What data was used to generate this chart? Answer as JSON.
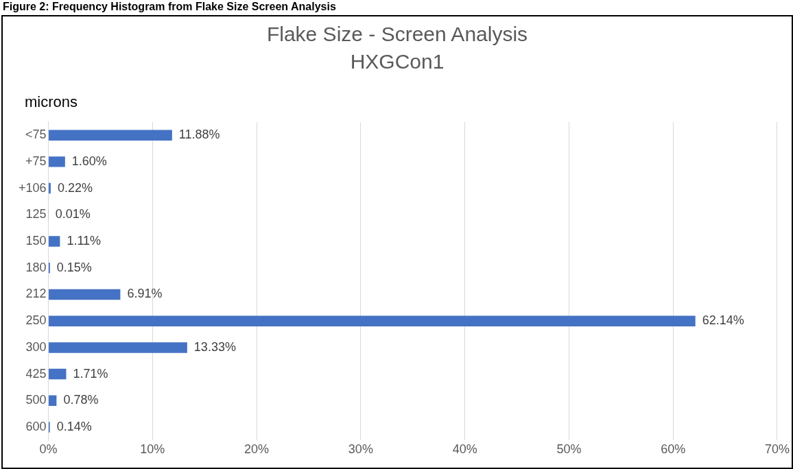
{
  "chart_data": {
    "type": "bar",
    "orientation": "horizontal",
    "title": "Flake Size - Screen Analysis",
    "subtitle": "HXGCon1",
    "ylabel": "microns",
    "annotations": [
      "Figure 2: Frequency Histogram from Flake Size Screen Analysis"
    ],
    "categories": [
      "<75",
      "+75",
      "+106",
      "125",
      "150",
      "180",
      "212",
      "250",
      "300",
      "425",
      "500",
      "600"
    ],
    "values": [
      11.88,
      1.6,
      0.22,
      0.01,
      1.11,
      0.15,
      6.91,
      62.14,
      13.33,
      1.71,
      0.78,
      0.14
    ],
    "value_labels": [
      "11.88%",
      "1.60%",
      "0.22%",
      "0.01%",
      "1.11%",
      "0.15%",
      "6.91%",
      "62.14%",
      "13.33%",
      "1.71%",
      "0.78%",
      "0.14%"
    ],
    "color": "#4472c4",
    "xlim": [
      0,
      70
    ],
    "xticks": [
      {
        "value": 0,
        "label": "0%"
      },
      {
        "value": 10,
        "label": "10%"
      },
      {
        "value": 20,
        "label": "20%"
      },
      {
        "value": 30,
        "label": "30%"
      },
      {
        "value": 40,
        "label": "40%"
      },
      {
        "value": 50,
        "label": "50%"
      },
      {
        "value": 60,
        "label": "60%"
      },
      {
        "value": 70,
        "label": "70%"
      }
    ],
    "grid": "x",
    "legend": false
  }
}
